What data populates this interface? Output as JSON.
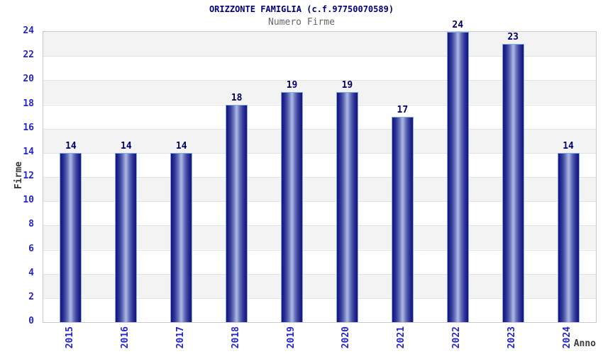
{
  "chart_data": {
    "type": "bar",
    "title": "ORIZZONTE FAMIGLIA (c.f.97750070589)",
    "subtitle": "Numero Firme",
    "xlabel": "Anno",
    "ylabel": "Firme",
    "categories": [
      "2015",
      "2016",
      "2017",
      "2018",
      "2019",
      "2020",
      "2021",
      "2022",
      "2023",
      "2024"
    ],
    "values": [
      14,
      14,
      14,
      18,
      19,
      19,
      17,
      24,
      23,
      14
    ],
    "ylim": [
      0,
      24
    ],
    "ytick_step": 2,
    "grid": "horizontal alternating bands every 2 units, gray band from 22-24 downward alternating",
    "legend": "none",
    "value_labels": "above each bar",
    "colors": {
      "title": "#00007d",
      "subtitle": "#666666",
      "tick_label": "#2424cc",
      "value_label": "#00005e",
      "axis_name": "#3a3a3a",
      "bar_dark": "#15157a",
      "bar_mid": "#3a449f",
      "bar_light": "#aab3e0",
      "bar_outline": "#7fb0e0",
      "band_gray": "#f3f3f3",
      "band_white": "#ffffff",
      "gridline": "#e2e2e2",
      "plot_border": "#c9c9c9"
    }
  }
}
